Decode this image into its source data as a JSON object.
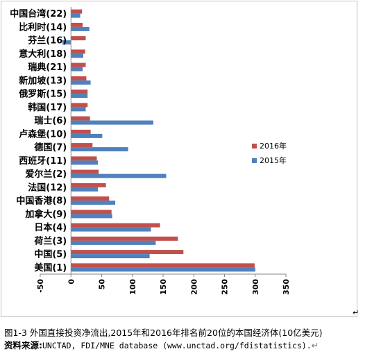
{
  "chart_data": {
    "type": "bar",
    "orientation": "horizontal",
    "categories": [
      "美国(1)",
      "中国(5)",
      "荷兰(3)",
      "日本(4)",
      "加拿大(9)",
      "中国香港(8)",
      "法国(12)",
      "爱尔兰(2)",
      "西班牙(11)",
      "德国(7)",
      "卢森堡(10)",
      "瑞士(6)",
      "韩国(17)",
      "俄罗斯(15)",
      "新加坡(13)",
      "瑞典(21)",
      "意大利(18)",
      "芬兰(16)",
      "比利时(14)",
      "中国台湾(22)"
    ],
    "series": [
      {
        "name": "2016年",
        "color": "#c0504d",
        "values": [
          299,
          183,
          174,
          145,
          66,
          62,
          57,
          45,
          42,
          35,
          32,
          31,
          27,
          27,
          25,
          24,
          23,
          24,
          19,
          18
        ]
      },
      {
        "name": "2015年",
        "color": "#4f81bd",
        "values": [
          300,
          128,
          138,
          130,
          67,
          72,
          44,
          155,
          44,
          93,
          51,
          134,
          24,
          27,
          32,
          19,
          20,
          -14,
          30,
          15
        ]
      }
    ],
    "xlim": [
      -50,
      350
    ],
    "xticks": [
      "-50",
      "0",
      "50",
      "100",
      "150",
      "200",
      "250",
      "300",
      "350"
    ],
    "legend_position": "right",
    "gridlines": false
  },
  "caption": {
    "title": "图1-3 外国直接投资净流出,2015年和2016年排名前20位的本国经济体(10亿美元)",
    "source_prefix": "资料来源:",
    "source_body": "UNCTAD, FDI/MNE database (www.unctad.org/fdistatistics).",
    "mark1": "↵",
    "mark2": "↵"
  }
}
